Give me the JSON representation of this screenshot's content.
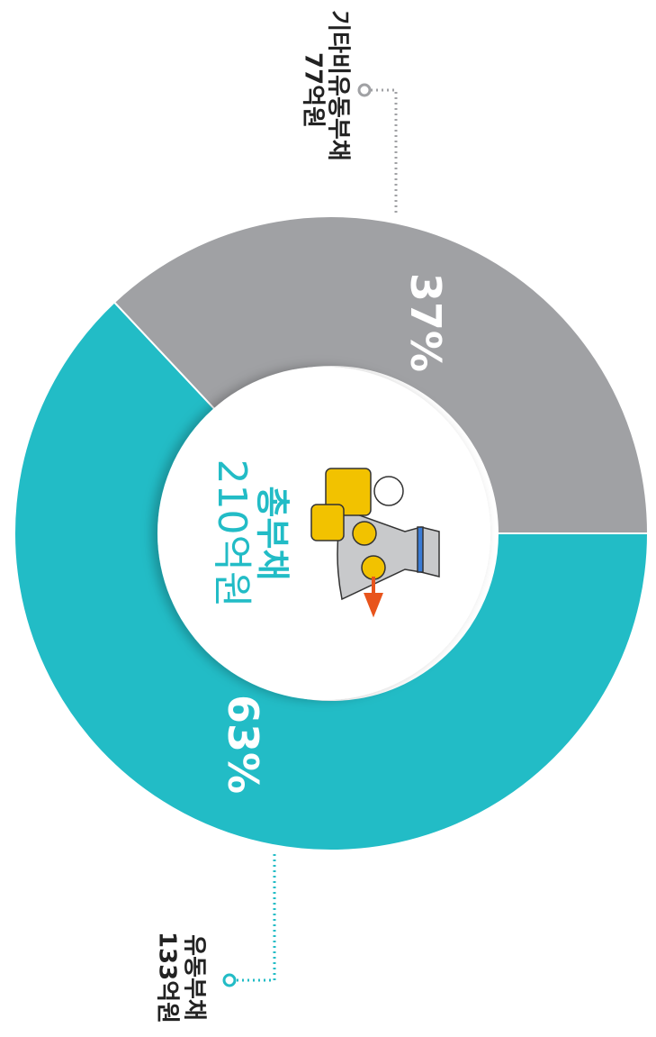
{
  "chart_data": {
    "type": "donut",
    "categories": [
      "유동부채",
      "기타비유동부채"
    ],
    "values": [
      63,
      37
    ],
    "value_labels": [
      "63%",
      "37%"
    ],
    "amount_labels": [
      "133억원",
      "77억원"
    ],
    "colors": [
      "#22bcc6",
      "#a0a1a4"
    ],
    "center_label": "총부채",
    "center_value": "210억원"
  }
}
